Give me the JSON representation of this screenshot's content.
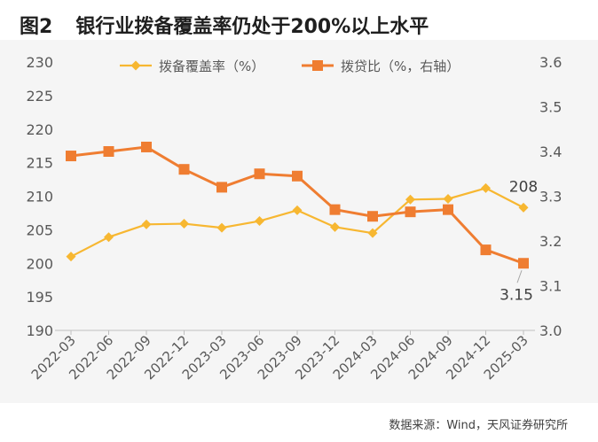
{
  "figure": {
    "number": "图2",
    "title": "银行业拨备覆盖率仍处于200%以上水平",
    "source": "数据来源：Wind，天风证券研究所"
  },
  "chart_data": {
    "type": "line",
    "categories": [
      "2022-03",
      "2022-06",
      "2022-09",
      "2022-12",
      "2023-03",
      "2023-06",
      "2023-09",
      "2023-12",
      "2024-03",
      "2024-06",
      "2024-09",
      "2024-12",
      "2025-03"
    ],
    "series": [
      {
        "name": "拨备覆盖率（%）",
        "axis": "left",
        "color": "#f7b731",
        "marker": "diamond",
        "values": [
          201.0,
          203.9,
          205.8,
          205.9,
          205.3,
          206.3,
          207.9,
          205.4,
          204.5,
          209.5,
          209.6,
          211.2,
          208.3
        ]
      },
      {
        "name": "拨贷比（%，右轴）",
        "axis": "right",
        "color": "#ef7d31",
        "marker": "square",
        "values": [
          3.39,
          3.4,
          3.41,
          3.36,
          3.32,
          3.35,
          3.345,
          3.27,
          3.255,
          3.265,
          3.27,
          3.18,
          3.15
        ]
      }
    ],
    "y_left": {
      "min": 190,
      "max": 230,
      "ticks": [
        "190",
        "195",
        "200",
        "205",
        "210",
        "215",
        "220",
        "225",
        "230"
      ]
    },
    "y_right": {
      "min": 3.0,
      "max": 3.6,
      "ticks": [
        "3.0",
        "3.1",
        "3.2",
        "3.3",
        "3.4",
        "3.5",
        "3.6"
      ]
    },
    "annotations": [
      {
        "text": "208",
        "series": 0,
        "index": 12
      },
      {
        "text": "3.15",
        "series": 1,
        "index": 12
      }
    ],
    "legend": "top",
    "grid": false
  }
}
